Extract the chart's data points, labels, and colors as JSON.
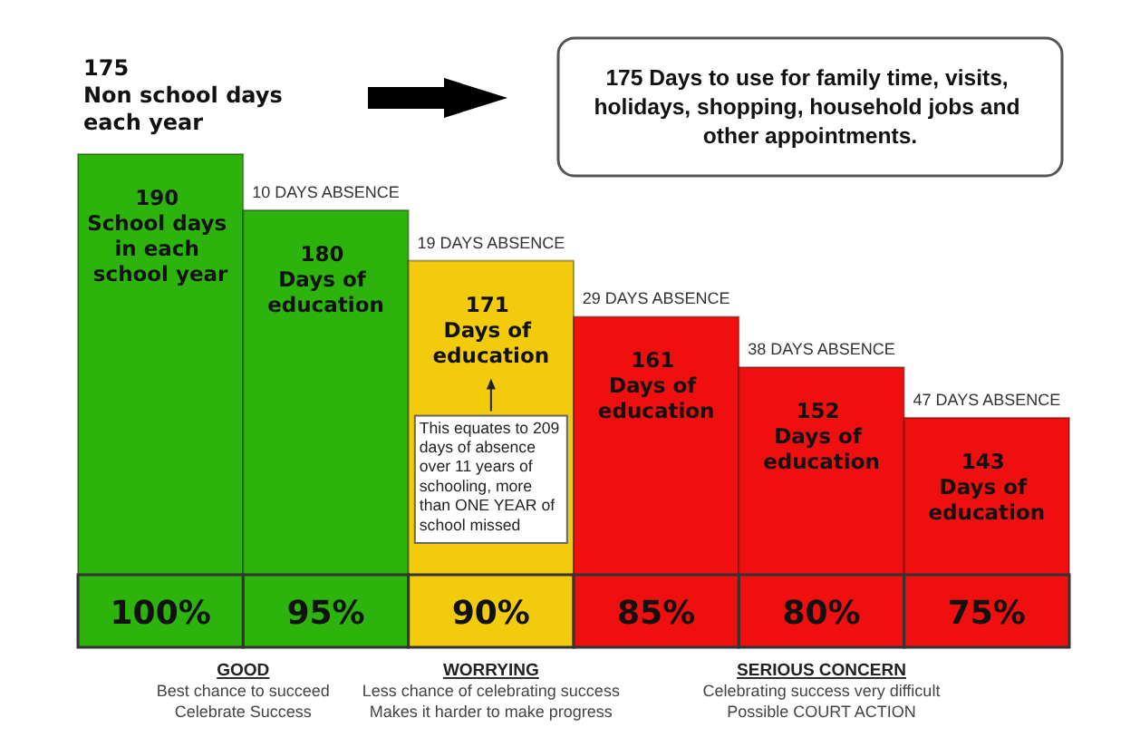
{
  "chart_data": {
    "type": "bar",
    "title": "175 Non school days each year",
    "categories": [
      "100%",
      "95%",
      "90%",
      "85%",
      "80%",
      "75%"
    ],
    "values": [
      190,
      180,
      171,
      161,
      152,
      143
    ],
    "colors": [
      "#2db40c",
      "#2db40c",
      "#f2cc0c",
      "#f00f0f",
      "#f00f0f",
      "#f00f0f"
    ],
    "value_labels": [
      "190 School days in each school year",
      "180 Days of education",
      "171 Days of education",
      "161 Days of education",
      "152 Days of education",
      "143 Days of education"
    ],
    "ylim": [
      115,
      190
    ],
    "tick_labels": "x",
    "annotations": [
      "175 Days to use for family time, visits, holidays, shopping, household jobs and other appointments.",
      {
        "text": "10 DAYS ABSENCE",
        "x": "95%",
        "y": 180
      },
      {
        "text": "19 DAYS ABSENCE",
        "x": "90%",
        "y": 171
      },
      {
        "text": "29 DAYS ABSENCE",
        "x": "85%",
        "y": 161
      },
      {
        "text": "38 DAYS ABSENCE",
        "x": "80%",
        "y": 152
      },
      {
        "text": "47 DAYS ABSENCE",
        "x": "75%",
        "y": 143
      },
      "This equates to 209 days of absence over 11 years of schooling, more than ONE YEAR of school missed",
      "GOOD",
      "Best chance to succeed",
      "Celebrate Success",
      "WORRYING",
      "Less chance of celebrating success",
      "Makes it harder to make progress",
      "SERIOUS CONCERN",
      "Celebrating success very difficult",
      "Possible COURT ACTION"
    ]
  }
}
